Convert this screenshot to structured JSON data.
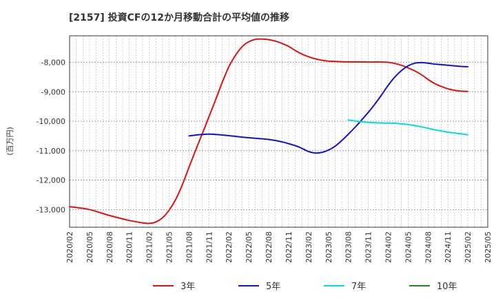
{
  "chart_data": {
    "type": "line",
    "title": "[2157]  投資CFの12か月移動合計の平均値の推移",
    "ylabel": "(百万円)",
    "xlabel": "",
    "x_ticks": [
      "2020/02",
      "2020/05",
      "2020/08",
      "2020/11",
      "2021/02",
      "2021/05",
      "2021/08",
      "2021/11",
      "2022/02",
      "2022/05",
      "2022/08",
      "2022/11",
      "2023/02",
      "2023/05",
      "2023/08",
      "2023/11",
      "2024/02",
      "2024/05",
      "2024/08",
      "2024/11",
      "2025/02",
      "2025/05"
    ],
    "y_ticks": [
      -13000,
      -12000,
      -11000,
      -10000,
      -9000,
      -8000
    ],
    "y_tick_labels": [
      "-13,000",
      "-12,000",
      "-11,000",
      "-10,000",
      "-9,000",
      "-8,000"
    ],
    "ylim": [
      -13600,
      -7100
    ],
    "xlim": [
      "2020/02",
      "2025/05"
    ],
    "grid": true,
    "legend_position": "bottom",
    "series": [
      {
        "name": "3年",
        "color": "#dd1111",
        "points": [
          [
            "2020/02",
            -12900
          ],
          [
            "2020/05",
            -13000
          ],
          [
            "2020/08",
            -13200
          ],
          [
            "2020/11",
            -13370
          ],
          [
            "2021/01",
            -13450
          ],
          [
            "2021/02",
            -13470
          ],
          [
            "2021/03",
            -13420
          ],
          [
            "2021/04",
            -13280
          ],
          [
            "2021/05",
            -13020
          ],
          [
            "2021/06",
            -12650
          ],
          [
            "2021/07",
            -12150
          ],
          [
            "2021/08",
            -11560
          ],
          [
            "2021/09",
            -10980
          ],
          [
            "2021/10",
            -10420
          ],
          [
            "2021/11",
            -9850
          ],
          [
            "2021/12",
            -9270
          ],
          [
            "2022/01",
            -8680
          ],
          [
            "2022/02",
            -8150
          ],
          [
            "2022/03",
            -7760
          ],
          [
            "2022/04",
            -7470
          ],
          [
            "2022/05",
            -7300
          ],
          [
            "2022/06",
            -7220
          ],
          [
            "2022/07",
            -7210
          ],
          [
            "2022/08",
            -7230
          ],
          [
            "2022/09",
            -7280
          ],
          [
            "2022/10",
            -7360
          ],
          [
            "2022/11",
            -7460
          ],
          [
            "2022/12",
            -7600
          ],
          [
            "2023/01",
            -7720
          ],
          [
            "2023/02",
            -7810
          ],
          [
            "2023/03",
            -7880
          ],
          [
            "2023/04",
            -7930
          ],
          [
            "2023/05",
            -7960
          ],
          [
            "2023/07",
            -7980
          ],
          [
            "2023/09",
            -7985
          ],
          [
            "2023/11",
            -7990
          ],
          [
            "2024/01",
            -7990
          ],
          [
            "2024/02",
            -8000
          ],
          [
            "2024/03",
            -8040
          ],
          [
            "2024/04",
            -8100
          ],
          [
            "2024/05",
            -8190
          ],
          [
            "2024/06",
            -8290
          ],
          [
            "2024/07",
            -8420
          ],
          [
            "2024/08",
            -8580
          ],
          [
            "2024/09",
            -8720
          ],
          [
            "2024/10",
            -8820
          ],
          [
            "2024/11",
            -8900
          ],
          [
            "2024/12",
            -8950
          ],
          [
            "2025/01",
            -8980
          ],
          [
            "2025/02",
            -8990
          ]
        ]
      },
      {
        "name": "5年",
        "color": "#1111cc",
        "points": [
          [
            "2021/08",
            -10500
          ],
          [
            "2021/09",
            -10470
          ],
          [
            "2021/10",
            -10450
          ],
          [
            "2021/11",
            -10440
          ],
          [
            "2021/12",
            -10450
          ],
          [
            "2022/02",
            -10490
          ],
          [
            "2022/05",
            -10560
          ],
          [
            "2022/08",
            -10620
          ],
          [
            "2022/10",
            -10700
          ],
          [
            "2022/12",
            -10830
          ],
          [
            "2023/01",
            -10920
          ],
          [
            "2023/02",
            -11030
          ],
          [
            "2023/03",
            -11080
          ],
          [
            "2023/04",
            -11060
          ],
          [
            "2023/05",
            -10980
          ],
          [
            "2023/06",
            -10850
          ],
          [
            "2023/07",
            -10660
          ],
          [
            "2023/08",
            -10440
          ],
          [
            "2023/09",
            -10210
          ],
          [
            "2023/10",
            -9960
          ],
          [
            "2023/11",
            -9700
          ],
          [
            "2023/12",
            -9420
          ],
          [
            "2024/01",
            -9110
          ],
          [
            "2024/02",
            -8780
          ],
          [
            "2024/03",
            -8500
          ],
          [
            "2024/04",
            -8280
          ],
          [
            "2024/05",
            -8120
          ],
          [
            "2024/06",
            -8030
          ],
          [
            "2024/07",
            -8010
          ],
          [
            "2024/08",
            -8030
          ],
          [
            "2024/09",
            -8060
          ],
          [
            "2024/10",
            -8080
          ],
          [
            "2024/11",
            -8100
          ],
          [
            "2024/12",
            -8120
          ],
          [
            "2025/01",
            -8140
          ],
          [
            "2025/02",
            -8150
          ]
        ]
      },
      {
        "name": "7年",
        "color": "#00dddd",
        "points": [
          [
            "2023/08",
            -9960
          ],
          [
            "2023/09",
            -9990
          ],
          [
            "2023/10",
            -10020
          ],
          [
            "2023/11",
            -10040
          ],
          [
            "2024/01",
            -10060
          ],
          [
            "2024/03",
            -10070
          ],
          [
            "2024/04",
            -10090
          ],
          [
            "2024/05",
            -10110
          ],
          [
            "2024/06",
            -10150
          ],
          [
            "2024/07",
            -10190
          ],
          [
            "2024/08",
            -10240
          ],
          [
            "2024/09",
            -10290
          ],
          [
            "2024/10",
            -10330
          ],
          [
            "2024/11",
            -10370
          ],
          [
            "2024/12",
            -10400
          ],
          [
            "2025/01",
            -10430
          ],
          [
            "2025/02",
            -10460
          ]
        ]
      },
      {
        "name": "10年",
        "color": "#228822",
        "points": []
      }
    ]
  }
}
